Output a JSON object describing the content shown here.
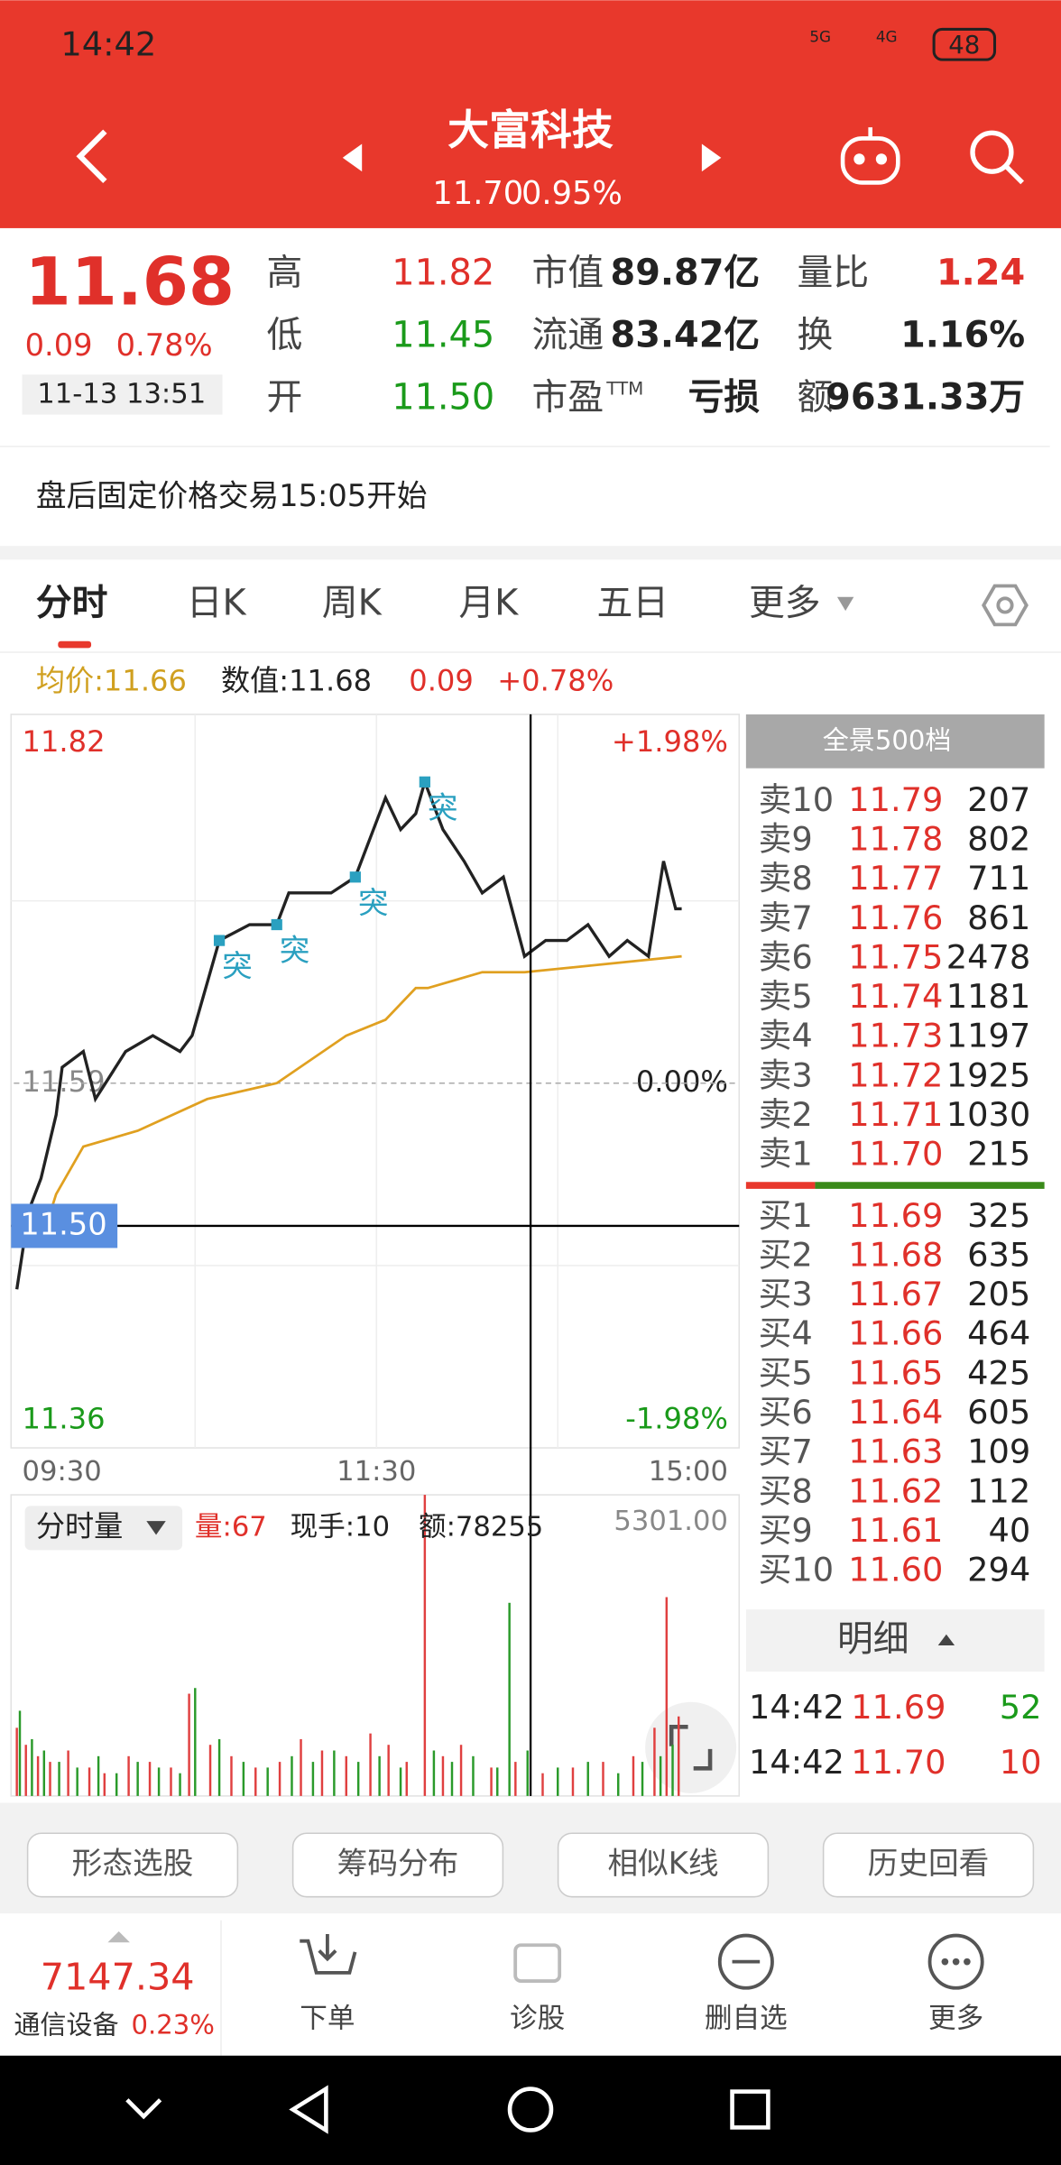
{
  "status_bar": {
    "time": "14:42",
    "network1": "5G",
    "network2": "4G",
    "battery": "48"
  },
  "header": {
    "title": "大富科技",
    "price": "11.70",
    "change_pct": "0.95%"
  },
  "quote": {
    "price": "11.68",
    "change": "0.09",
    "change_pct": "0.78%",
    "datetime": "11-13 13:51",
    "stats": [
      [
        {
          "label": "高",
          "value": "11.82"
        },
        {
          "label": "低",
          "value": "11.45"
        },
        {
          "label": "开",
          "value": "11.50"
        }
      ],
      [
        {
          "label": "市值",
          "value": "89.87亿"
        },
        {
          "label": "流通",
          "value": "83.42亿"
        },
        {
          "label": "市盈",
          "sup": "TTM",
          "value": "亏损"
        }
      ],
      [
        {
          "label": "量比",
          "value": "1.24"
        },
        {
          "label": "换",
          "value": "1.16%"
        },
        {
          "label": "额",
          "value": "9631.33万"
        }
      ]
    ]
  },
  "notice": "盘后固定价格交易15:05开始",
  "tabs": [
    "分时",
    "日K",
    "周K",
    "月K",
    "五日",
    "更多"
  ],
  "info_line": {
    "avg": "均价:11.66",
    "value": "数值:11.68",
    "change": "0.09",
    "change_pct": "+0.78%"
  },
  "chart_data": [
    {
      "type": "line",
      "xlim": [
        0,
        240
      ],
      "xticks": [
        {
          "value": 0,
          "label": "09:30"
        },
        {
          "value": 120,
          "label": "11:30"
        },
        {
          "value": 240,
          "label": "15:00"
        }
      ],
      "ylim": [
        11.36,
        11.82
      ],
      "yticks": [
        11.82,
        11.59,
        11.36
      ],
      "y2lim": [
        -1.98,
        1.98
      ],
      "y2ticks": [
        {
          "value": 1.98,
          "label": "+1.98%"
        },
        {
          "value": 0,
          "label": "0.00%"
        },
        {
          "value": -1.98,
          "label": "-1.98%"
        }
      ],
      "series": [
        {
          "color": "#222222",
          "x": [
            1,
            5,
            9,
            14,
            16,
            23,
            27,
            37,
            46,
            55,
            59,
            68,
            78,
            87,
            91,
            105,
            113,
            119,
            123,
            128,
            133,
            136,
            142,
            149,
            155,
            162,
            169,
            176,
            183,
            190,
            197,
            203,
            210,
            215,
            219,
            221
          ],
          "values": [
            11.46,
            11.51,
            11.53,
            11.57,
            11.6,
            11.61,
            11.58,
            11.61,
            11.62,
            11.61,
            11.62,
            11.68,
            11.69,
            11.69,
            11.71,
            11.71,
            11.72,
            11.75,
            11.77,
            11.75,
            11.76,
            11.78,
            11.75,
            11.73,
            11.71,
            11.72,
            11.67,
            11.68,
            11.68,
            11.69,
            11.67,
            11.68,
            11.67,
            11.73,
            11.7,
            11.7
          ]
        },
        {
          "color": "#e0a020",
          "x": [
            9,
            14,
            23,
            41,
            64,
            87,
            110,
            123,
            133,
            137,
            155,
            169,
            221
          ],
          "values": [
            11.49,
            11.52,
            11.55,
            11.56,
            11.58,
            11.59,
            11.62,
            11.63,
            11.65,
            11.65,
            11.66,
            11.66,
            11.67
          ]
        }
      ],
      "crosshair": {
        "x": 171,
        "y": 11.5,
        "label": "11.50"
      },
      "annotations": [
        {
          "x": 68,
          "y": 11.68,
          "label": "突"
        },
        {
          "x": 87,
          "y": 11.69,
          "label": "突"
        },
        {
          "x": 113,
          "y": 11.72,
          "label": "突"
        },
        {
          "x": 136,
          "y": 11.78,
          "label": "突"
        }
      ]
    },
    {
      "type": "bar",
      "title": "分时量",
      "info": [
        "量:67",
        "现手:10",
        "额:78255"
      ],
      "xlim": [
        0,
        240
      ],
      "ylim": [
        0,
        5301
      ],
      "yticks": [
        {
          "value": 5301,
          "label": "5301.00"
        }
      ],
      "series": [
        {
          "color": "#e04040",
          "x": [
            1,
            4,
            8,
            12,
            18,
            25,
            30,
            38,
            45,
            52,
            58,
            65,
            72,
            80,
            88,
            95,
            102,
            110,
            118,
            124,
            130,
            136,
            142,
            148,
            158,
            166,
            175,
            185,
            195,
            205,
            212,
            216,
            220
          ],
          "values": [
            1200,
            900,
            700,
            600,
            800,
            500,
            400,
            700,
            600,
            500,
            1800,
            900,
            700,
            500,
            600,
            1000,
            800,
            700,
            1100,
            900,
            600,
            5301,
            700,
            900,
            500,
            600,
            400,
            500,
            600,
            700,
            1200,
            3500,
            1400
          ]
        },
        {
          "color": "#2a9a2a",
          "x": [
            2,
            6,
            10,
            15,
            21,
            28,
            34,
            41,
            48,
            55,
            60,
            68,
            76,
            84,
            92,
            99,
            106,
            114,
            121,
            128,
            139,
            145,
            152,
            160,
            164,
            170,
            180,
            190,
            200,
            208,
            214,
            218
          ],
          "values": [
            1500,
            1000,
            800,
            600,
            500,
            700,
            400,
            600,
            500,
            400,
            1900,
            1000,
            600,
            500,
            700,
            600,
            800,
            600,
            700,
            500,
            800,
            600,
            700,
            500,
            3400,
            800,
            500,
            600,
            400,
            600,
            700,
            900
          ]
        }
      ]
    }
  ],
  "order_book": {
    "title": "全景500档",
    "asks": [
      {
        "label": "卖10",
        "price": "11.79",
        "volume": "207"
      },
      {
        "label": "卖9",
        "price": "11.78",
        "volume": "802"
      },
      {
        "label": "卖8",
        "price": "11.77",
        "volume": "711"
      },
      {
        "label": "卖7",
        "price": "11.76",
        "volume": "861"
      },
      {
        "label": "卖6",
        "price": "11.75",
        "volume": "2478"
      },
      {
        "label": "卖5",
        "price": "11.74",
        "volume": "1181"
      },
      {
        "label": "卖4",
        "price": "11.73",
        "volume": "1197"
      },
      {
        "label": "卖3",
        "price": "11.72",
        "volume": "1925"
      },
      {
        "label": "卖2",
        "price": "11.71",
        "volume": "1030"
      },
      {
        "label": "卖1",
        "price": "11.70",
        "volume": "215"
      }
    ],
    "bids": [
      {
        "label": "买1",
        "price": "11.69",
        "volume": "325"
      },
      {
        "label": "买2",
        "price": "11.68",
        "volume": "635"
      },
      {
        "label": "买3",
        "price": "11.67",
        "volume": "205"
      },
      {
        "label": "买4",
        "price": "11.66",
        "volume": "464"
      },
      {
        "label": "买5",
        "price": "11.65",
        "volume": "425"
      },
      {
        "label": "买6",
        "price": "11.64",
        "volume": "605"
      },
      {
        "label": "买7",
        "price": "11.63",
        "volume": "109"
      },
      {
        "label": "买8",
        "price": "11.62",
        "volume": "112"
      },
      {
        "label": "买9",
        "price": "11.61",
        "volume": "40"
      },
      {
        "label": "买10",
        "price": "11.60",
        "volume": "294"
      }
    ]
  },
  "detail": {
    "title": "明细",
    "rows": [
      {
        "time": "14:42",
        "price": "11.69",
        "volume": "52"
      },
      {
        "time": "14:42",
        "price": "11.70",
        "volume": "10"
      }
    ]
  },
  "tools": [
    "形态选股",
    "筹码分布",
    "相似K线",
    "历史回看"
  ],
  "index": {
    "value": "7147.34",
    "name": "通信设备",
    "change_pct": "0.23%"
  },
  "nav": [
    "下单",
    "诊股",
    "删自选",
    "更多"
  ]
}
